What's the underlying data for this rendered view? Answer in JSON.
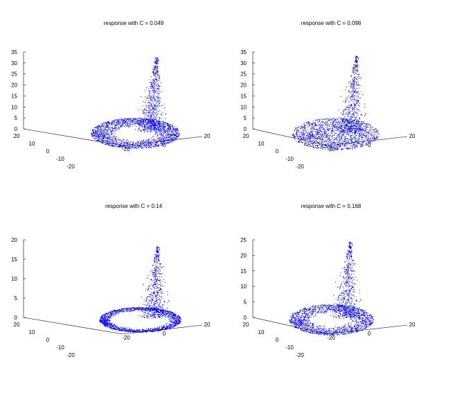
{
  "chart_data": [
    {
      "type": "scatter",
      "title": "response with C = 0.049",
      "zlim": [
        0,
        35
      ],
      "z_ticks": [
        "0",
        "5",
        "10",
        "15",
        "20",
        "25",
        "30",
        "35"
      ],
      "x_ticks": [
        "0",
        "20"
      ],
      "y_ticks": [
        "-20",
        "-10",
        "0",
        "10",
        "20"
      ],
      "y_near_label": "-20",
      "color": "#0000ff",
      "attractor": {
        "hole_radius": 6,
        "ring_radius": 14,
        "peak_height": 33,
        "grid": false
      }
    },
    {
      "type": "scatter",
      "title": "response with C = 0.098",
      "zlim": [
        0,
        35
      ],
      "z_ticks": [
        "0",
        "5",
        "10",
        "15",
        "20",
        "25",
        "30",
        "35"
      ],
      "x_ticks": [
        "0",
        "20"
      ],
      "y_ticks": [
        "-20",
        "-10",
        "0",
        "10",
        "20"
      ],
      "y_near_label": "-20",
      "color": "#0000ff",
      "attractor": {
        "hole_radius": 0.5,
        "ring_radius": 15,
        "peak_height": 34,
        "grid": false
      }
    },
    {
      "type": "scatter",
      "title": "response with C = 0.14",
      "zlim": [
        0,
        20
      ],
      "z_ticks": [
        "0",
        "5",
        "10",
        "15",
        "20"
      ],
      "x_ticks": [
        "0",
        "20"
      ],
      "y_ticks": [
        "-20",
        "-10",
        "0",
        "10",
        "20"
      ],
      "y_near_label": "-20",
      "color": "#0000ff",
      "attractor": {
        "hole_radius": 9,
        "ring_radius": 13,
        "peak_height": 18,
        "grid": false
      }
    },
    {
      "type": "scatter",
      "title": "response with C = 0.168",
      "zlim": [
        0,
        25
      ],
      "z_ticks": [
        "0",
        "5",
        "10",
        "15",
        "20",
        "25"
      ],
      "x_ticks": [
        "0",
        "20"
      ],
      "y_ticks": [
        "-20",
        "-10",
        "0",
        "10",
        "20"
      ],
      "y_near_label": "-20",
      "color": "#0000ff",
      "attractor": {
        "hole_radius": 6,
        "ring_radius": 14,
        "peak_height": 24,
        "grid": false
      }
    }
  ]
}
